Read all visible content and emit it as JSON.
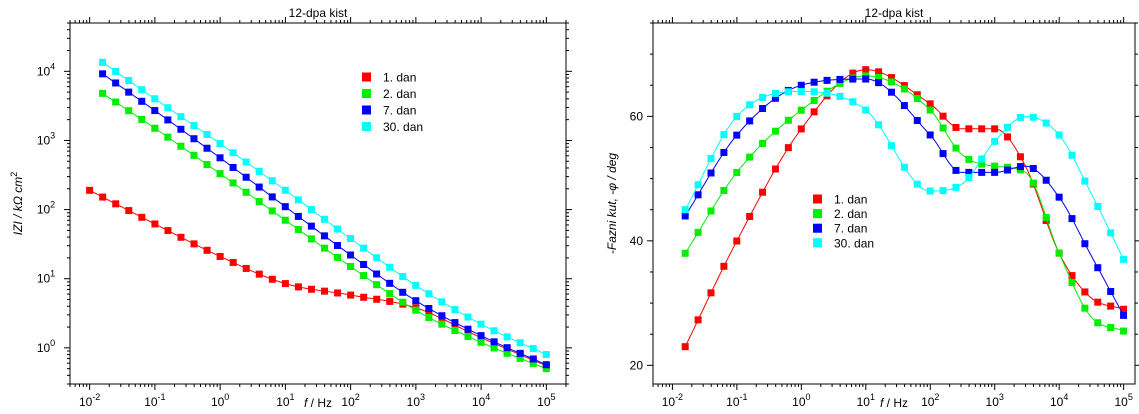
{
  "chart_data": [
    {
      "type": "scatter",
      "title": "12-dpa kist",
      "xlabel_italic": "f",
      "xlabel_rest": " / Hz",
      "ylabel": "IZI / kΩ cm",
      "ylabel_sup": "2",
      "xscale": "log",
      "yscale": "log",
      "xlim": [
        0.005,
        200000
      ],
      "ylim": [
        0.3,
        50000
      ],
      "x_ticks": [
        {
          "base": "10",
          "exp": "-2"
        },
        {
          "base": "10",
          "exp": "-1"
        },
        {
          "base": "10",
          "exp": "0"
        },
        {
          "base": "10",
          "exp": "1"
        },
        {
          "base": "10",
          "exp": "2"
        },
        {
          "base": "10",
          "exp": "3"
        },
        {
          "base": "10",
          "exp": "4"
        },
        {
          "base": "10",
          "exp": "5"
        }
      ],
      "y_ticks": [
        {
          "base": "10",
          "exp": "0"
        },
        {
          "base": "10",
          "exp": "1"
        },
        {
          "base": "10",
          "exp": "2"
        },
        {
          "base": "10",
          "exp": "3"
        },
        {
          "base": "10",
          "exp": "4"
        }
      ],
      "legend_position": "upper-right",
      "series": [
        {
          "name": "1. dan",
          "color": "#ff0000",
          "points": [
            [
              0.01,
              190
            ],
            [
              0.1,
              62
            ],
            [
              1,
              21
            ],
            [
              10,
              8.5
            ],
            [
              100,
              5.8
            ],
            [
              1000,
              3.8
            ],
            [
              10000,
              1.4
            ],
            [
              100000,
              0.55
            ]
          ]
        },
        {
          "name": "2. dan",
          "color": "#00ee00",
          "points": [
            [
              0.0158,
              4800
            ],
            [
              0.1,
              1500
            ],
            [
              1,
              330
            ],
            [
              10,
              70
            ],
            [
              100,
              15
            ],
            [
              1000,
              3.5
            ],
            [
              10000,
              1.2
            ],
            [
              100000,
              0.5
            ]
          ]
        },
        {
          "name": "7. dan",
          "color": "#0000ff",
          "points": [
            [
              0.0158,
              9200
            ],
            [
              0.1,
              2700
            ],
            [
              1,
              560
            ],
            [
              10,
              110
            ],
            [
              100,
              22
            ],
            [
              1000,
              4.8
            ],
            [
              10000,
              1.5
            ],
            [
              100000,
              0.57
            ]
          ]
        },
        {
          "name": "30. dan",
          "color": "#00ffff",
          "points": [
            [
              0.0158,
              13500
            ],
            [
              0.1,
              4000
            ],
            [
              1,
              900
            ],
            [
              10,
              190
            ],
            [
              100,
              38
            ],
            [
              1000,
              8
            ],
            [
              10000,
              2.2
            ],
            [
              100000,
              0.8
            ]
          ]
        }
      ]
    },
    {
      "type": "scatter",
      "title": "12-dpa kist",
      "xlabel_italic": "f",
      "xlabel_rest": " / Hz",
      "ylabel": "-Fazni kut, -φ / deg",
      "xscale": "log",
      "yscale": "linear",
      "xlim": [
        0.005,
        150000
      ],
      "ylim": [
        17,
        75
      ],
      "x_ticks": [
        {
          "base": "10",
          "exp": "-2"
        },
        {
          "base": "10",
          "exp": "-1"
        },
        {
          "base": "10",
          "exp": "0"
        },
        {
          "base": "10",
          "exp": "1"
        },
        {
          "base": "10",
          "exp": "2"
        },
        {
          "base": "10",
          "exp": "3"
        },
        {
          "base": "10",
          "exp": "4"
        },
        {
          "base": "10",
          "exp": "5"
        }
      ],
      "y_ticks": [
        20,
        40,
        60
      ],
      "legend_position": "lower-left",
      "series": [
        {
          "name": "1. dan",
          "color": "#ff0000",
          "points": [
            [
              0.0158,
              23
            ],
            [
              0.1,
              40
            ],
            [
              1,
              58
            ],
            [
              10,
              67.5
            ],
            [
              100,
              62
            ],
            [
              300,
              58
            ],
            [
              1000,
              58
            ],
            [
              3000,
              52
            ],
            [
              10000,
              38
            ],
            [
              30000,
              31
            ],
            [
              100000,
              29
            ]
          ]
        },
        {
          "name": "2. dan",
          "color": "#00ee00",
          "points": [
            [
              0.0158,
              38
            ],
            [
              0.1,
              51
            ],
            [
              1,
              61
            ],
            [
              10,
              66.5
            ],
            [
              100,
              61
            ],
            [
              300,
              54
            ],
            [
              1000,
              52
            ],
            [
              3000,
              51
            ],
            [
              10000,
              38
            ],
            [
              30000,
              28
            ],
            [
              100000,
              25.5
            ]
          ]
        },
        {
          "name": "7. dan",
          "color": "#0000ff",
          "points": [
            [
              0.0158,
              44
            ],
            [
              0.1,
              57
            ],
            [
              1,
              65
            ],
            [
              10,
              66
            ],
            [
              100,
              57
            ],
            [
              300,
              51
            ],
            [
              1000,
              51
            ],
            [
              3000,
              52
            ],
            [
              10000,
              47
            ],
            [
              30000,
              38
            ],
            [
              100000,
              28
            ]
          ]
        },
        {
          "name": "30. dan",
          "color": "#00ffff",
          "points": [
            [
              0.0158,
              45
            ],
            [
              0.1,
              60
            ],
            [
              1,
              64
            ],
            [
              10,
              61
            ],
            [
              100,
              48
            ],
            [
              300,
              49
            ],
            [
              1000,
              56
            ],
            [
              3000,
              60
            ],
            [
              10000,
              57
            ],
            [
              30000,
              48
            ],
            [
              100000,
              37
            ]
          ]
        }
      ]
    }
  ]
}
